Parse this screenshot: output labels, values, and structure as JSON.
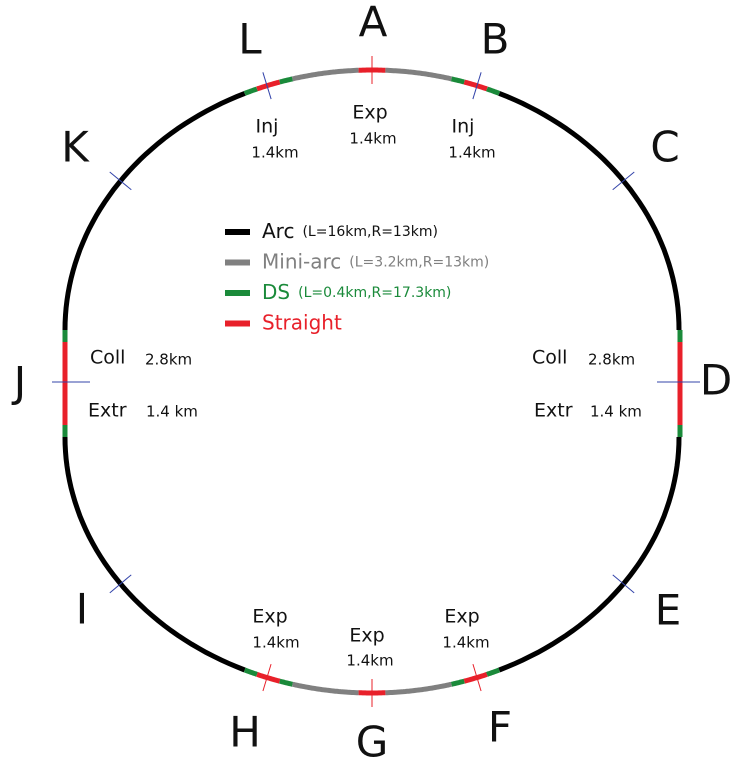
{
  "points": [
    "A",
    "B",
    "C",
    "D",
    "E",
    "F",
    "G",
    "H",
    "I",
    "J",
    "K",
    "L"
  ],
  "sections": [
    {
      "name": "Inj",
      "length": "1.4km"
    },
    {
      "name": "Exp",
      "length": "1.4km"
    },
    {
      "name": "Inj",
      "length": "1.4km"
    },
    {
      "name": "Coll",
      "length": "2.8km"
    },
    {
      "name": "Extr",
      "length": "1.4 km"
    },
    {
      "name": "Coll",
      "length": "2.8km"
    },
    {
      "name": "Extr",
      "length": "1.4 km"
    },
    {
      "name": "Exp",
      "length": "1.4km"
    },
    {
      "name": "Exp",
      "length": "1.4km"
    },
    {
      "name": "Exp",
      "length": "1.4km"
    }
  ],
  "legend": [
    {
      "name": "Arc",
      "detail": "(L=16km,R=13km)",
      "color": "#000000"
    },
    {
      "name": "Mini-arc",
      "detail": "(L=3.2km,R=13km)",
      "color": "#808080"
    },
    {
      "name": "DS",
      "detail": "(L=0.4km,R=17.3km)",
      "color": "#1a8a3a"
    },
    {
      "name": "Straight",
      "color": "#e8202a"
    }
  ]
}
